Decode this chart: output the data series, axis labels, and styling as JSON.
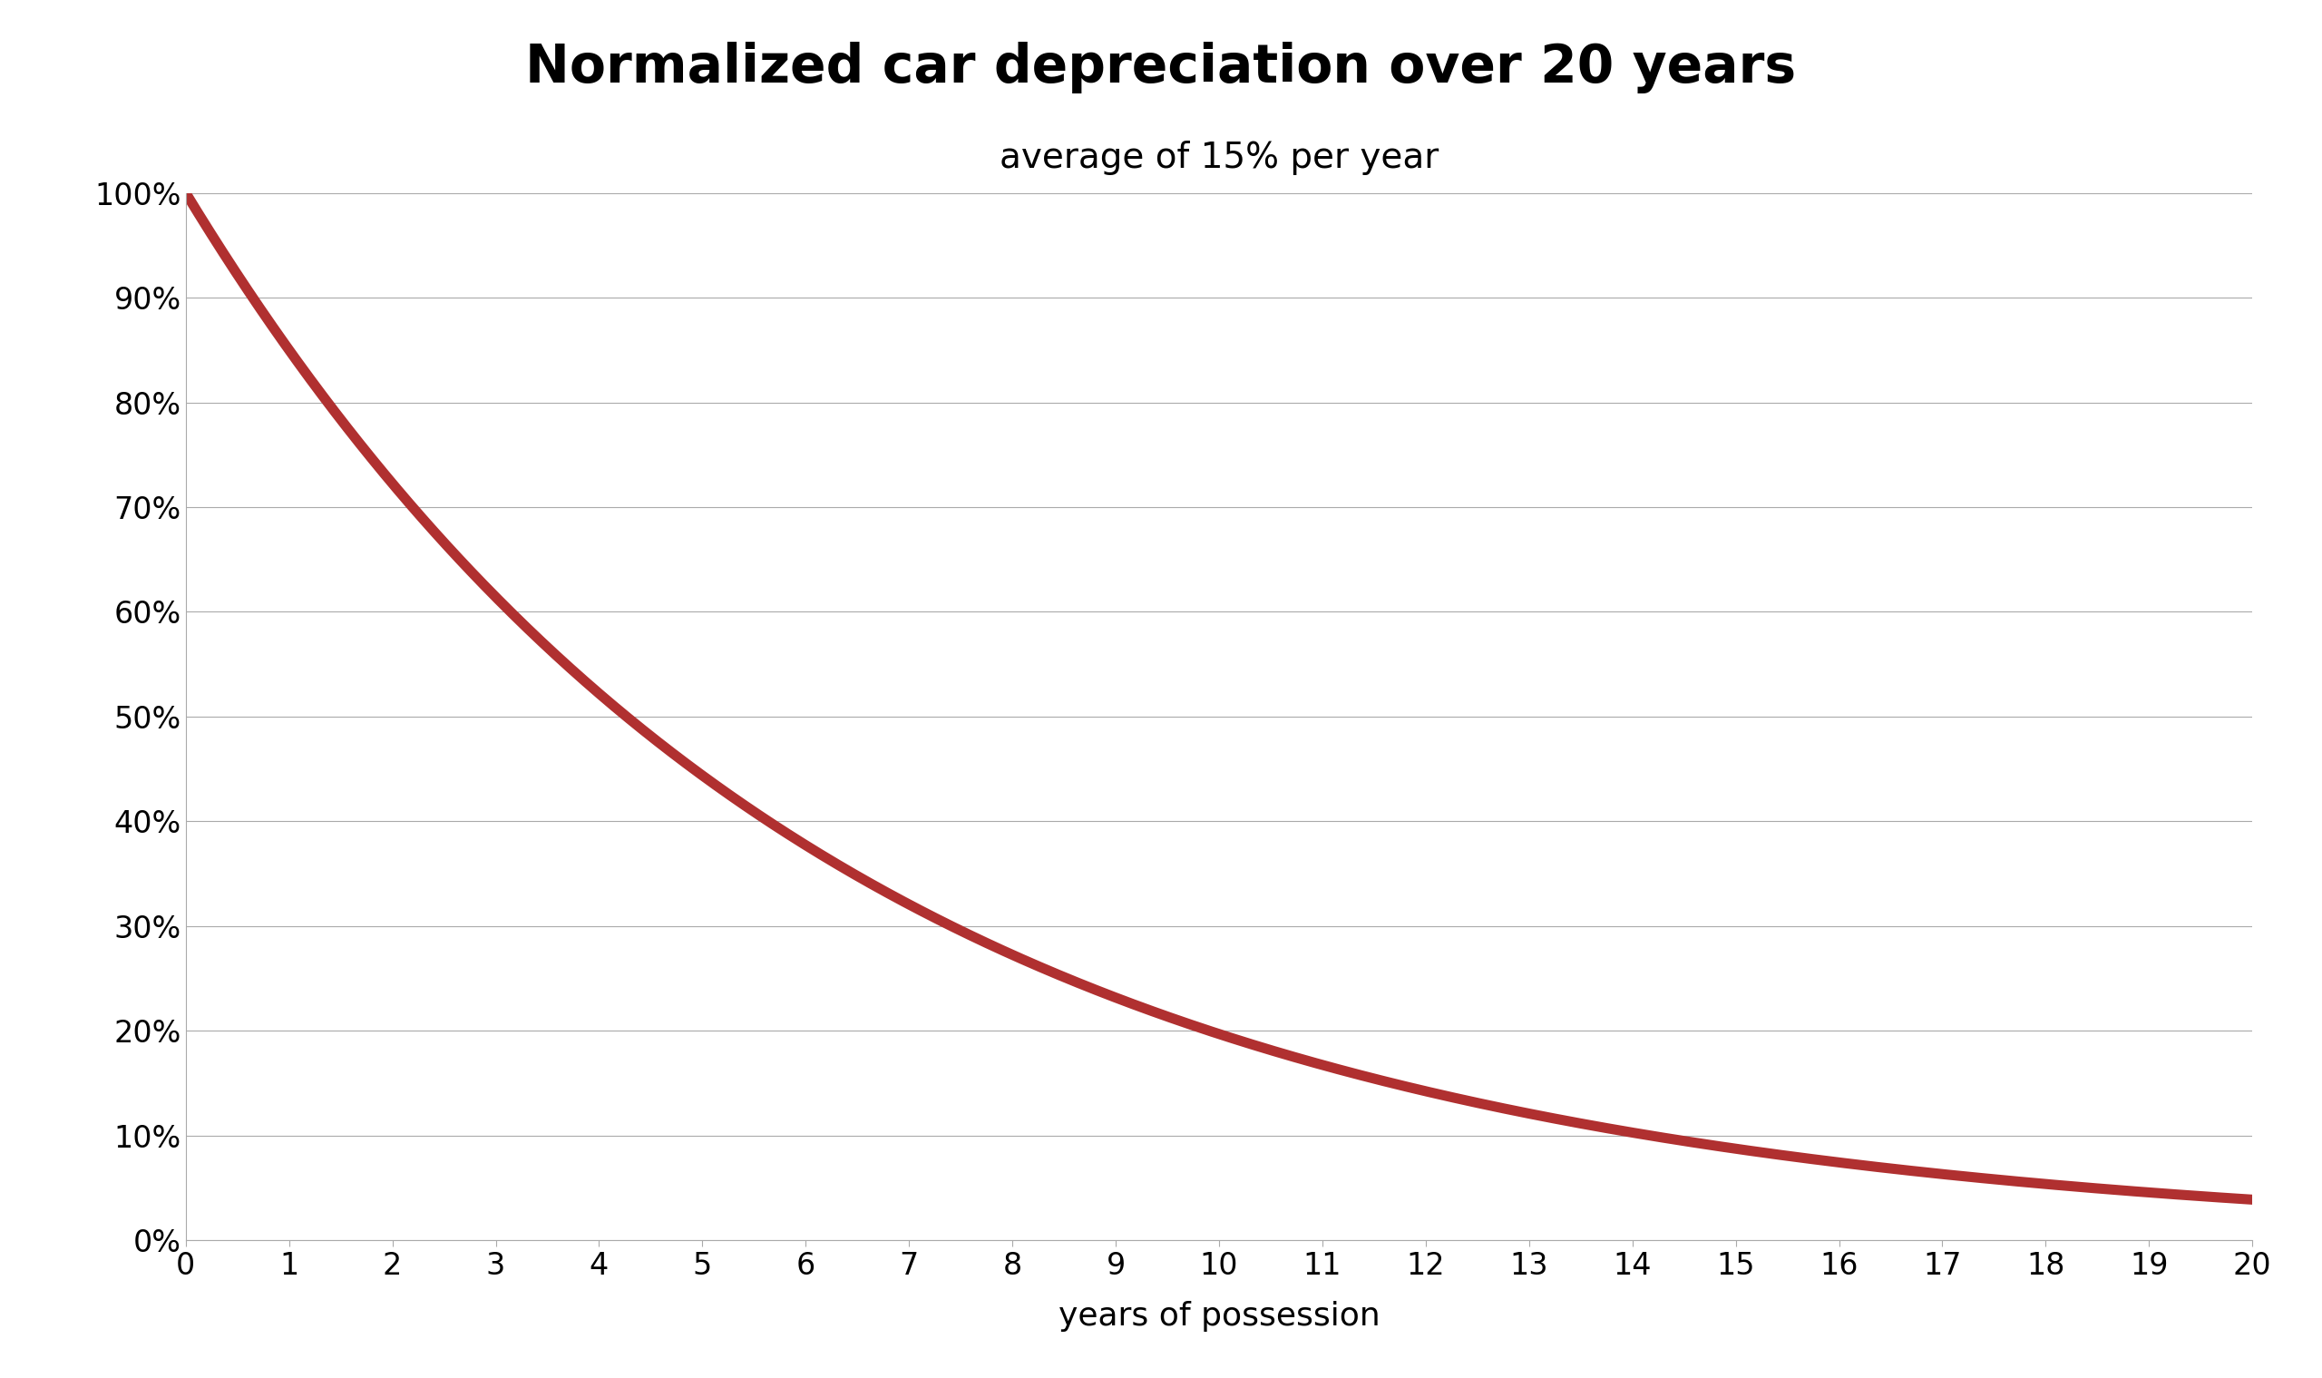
{
  "title": "Normalized car depreciation over 20 years",
  "subtitle": "average of 15% per year",
  "xlabel": "years of possession",
  "depreciation_rate": 0.15,
  "years": 20,
  "ylim": [
    0,
    1.0
  ],
  "ytick_step": 0.1,
  "xtick_values": [
    0,
    1,
    2,
    3,
    4,
    5,
    6,
    7,
    8,
    9,
    10,
    11,
    12,
    13,
    14,
    15,
    16,
    17,
    18,
    19,
    20
  ],
  "line_color": "#b03030",
  "line_width": 8,
  "grid_color": "#aaaaaa",
  "grid_linewidth": 0.8,
  "background_color": "#ffffff",
  "title_fontsize": 42,
  "subtitle_fontsize": 28,
  "xlabel_fontsize": 26,
  "tick_fontsize": 24,
  "spine_color": "#aaaaaa"
}
